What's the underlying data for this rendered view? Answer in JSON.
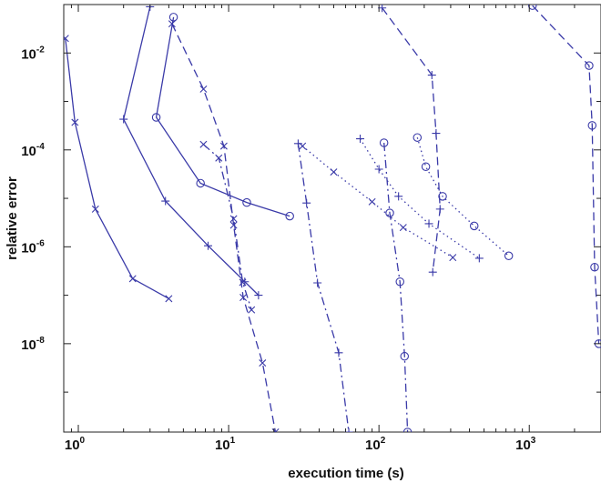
{
  "chart_data": {
    "type": "line",
    "title": "",
    "xlabel": "execution time (s)",
    "ylabel": "relative error",
    "xscale": "log",
    "yscale": "log",
    "xlim": [
      0.8,
      3000
    ],
    "ylim": [
      1.5e-10,
      0.1
    ],
    "xticks": [
      {
        "value": 1,
        "base": "10",
        "exp": "0"
      },
      {
        "value": 10,
        "base": "10",
        "exp": "1"
      },
      {
        "value": 100,
        "base": "10",
        "exp": "2"
      },
      {
        "value": 1000,
        "base": "10",
        "exp": "3"
      }
    ],
    "yticks": [
      {
        "value": 1e-08,
        "base": "10",
        "exp": "-8"
      },
      {
        "value": 1e-06,
        "base": "10",
        "exp": "-6"
      },
      {
        "value": 0.0001,
        "base": "10",
        "exp": "-4"
      },
      {
        "value": 0.01,
        "base": "10",
        "exp": "-2"
      }
    ],
    "grid": false,
    "color": "#3a3aa8",
    "series": [
      {
        "style": "solid",
        "marker": "x",
        "points": [
          [
            0.82,
            0.02
          ],
          [
            0.95,
            0.00037
          ],
          [
            1.3,
            6e-06
          ],
          [
            2.3,
            2.2e-07
          ],
          [
            4.0,
            8.5e-08
          ]
        ]
      },
      {
        "style": "solid",
        "marker": "+",
        "points": [
          [
            3.0,
            0.09
          ],
          [
            2.0,
            0.00043
          ],
          [
            3.8,
            8.8e-06
          ],
          [
            7.3,
            1.05e-06
          ],
          [
            12.8,
            1.9e-07
          ],
          [
            15.8,
            1e-07
          ]
        ]
      },
      {
        "style": "solid",
        "marker": "o",
        "points": [
          [
            4.3,
            0.055
          ],
          [
            3.3,
            0.00047
          ],
          [
            6.5,
            2.05e-05
          ],
          [
            13.2,
            8.2e-06
          ],
          [
            25.5,
            4.3e-06
          ]
        ]
      },
      {
        "style": "dashed",
        "marker": "x",
        "points": [
          [
            4.2,
            0.04
          ],
          [
            6.8,
            0.0018
          ],
          [
            9.3,
            0.00012
          ],
          [
            10.8,
            2.8e-06
          ],
          [
            12.5,
            9e-08
          ],
          [
            16.8,
            4e-09
          ],
          [
            20.5,
            1.5e-10
          ]
        ]
      },
      {
        "style": "dashdot",
        "marker": "x",
        "points": [
          [
            6.8,
            0.00013
          ],
          [
            8.6,
            6.8e-05
          ],
          [
            10.8,
            3.8e-06
          ],
          [
            12.4,
            1.85e-07
          ],
          [
            14.2,
            5e-08
          ]
        ]
      },
      {
        "style": "dashdot",
        "marker": "+",
        "points": [
          [
            29.0,
            0.000135
          ],
          [
            33.0,
            8e-06
          ],
          [
            39.0,
            1.8e-07
          ],
          [
            54.0,
            6.5e-09
          ],
          [
            63.0,
            1.5e-10
          ]
        ]
      },
      {
        "style": "dotted",
        "marker": "x",
        "points": [
          [
            31.0,
            0.00012
          ],
          [
            50.0,
            3.5e-05
          ],
          [
            90.0,
            8.5e-06
          ],
          [
            145.0,
            2.5e-06
          ],
          [
            310.0,
            6e-07
          ]
        ]
      },
      {
        "style": "dotted",
        "marker": "+",
        "points": [
          [
            75.0,
            0.00017
          ],
          [
            100.0,
            4e-05
          ],
          [
            135.0,
            1.1e-05
          ],
          [
            215.0,
            3e-06
          ],
          [
            465.0,
            5.8e-07
          ]
        ]
      },
      {
        "style": "dotted",
        "marker": "o",
        "points": [
          [
            180.0,
            0.00018
          ],
          [
            205.0,
            4.5e-05
          ],
          [
            265.0,
            1.1e-05
          ],
          [
            430.0,
            2.7e-06
          ],
          [
            730.0,
            6.5e-07
          ]
        ]
      },
      {
        "style": "dashdot",
        "marker": "o",
        "points": [
          [
            108.0,
            0.00014
          ],
          [
            118.0,
            5e-06
          ],
          [
            138.0,
            1.9e-07
          ],
          [
            148.0,
            5.5e-09
          ],
          [
            155.0,
            1.5e-10
          ]
        ]
      },
      {
        "style": "dashed",
        "marker": "+",
        "points": [
          [
            105.0,
            0.085
          ],
          [
            225.0,
            0.0035
          ],
          [
            240.0,
            0.00022
          ],
          [
            255.0,
            6e-06
          ],
          [
            228.0,
            3e-07
          ]
        ]
      },
      {
        "style": "dashed",
        "marker": "o",
        "points": [
          [
            1050.0,
            0.095
          ],
          [
            2500.0,
            0.0055
          ],
          [
            2620.0,
            0.00032
          ],
          [
            2720.0,
            3.8e-07
          ],
          [
            2900.0,
            1e-08
          ]
        ]
      }
    ]
  }
}
